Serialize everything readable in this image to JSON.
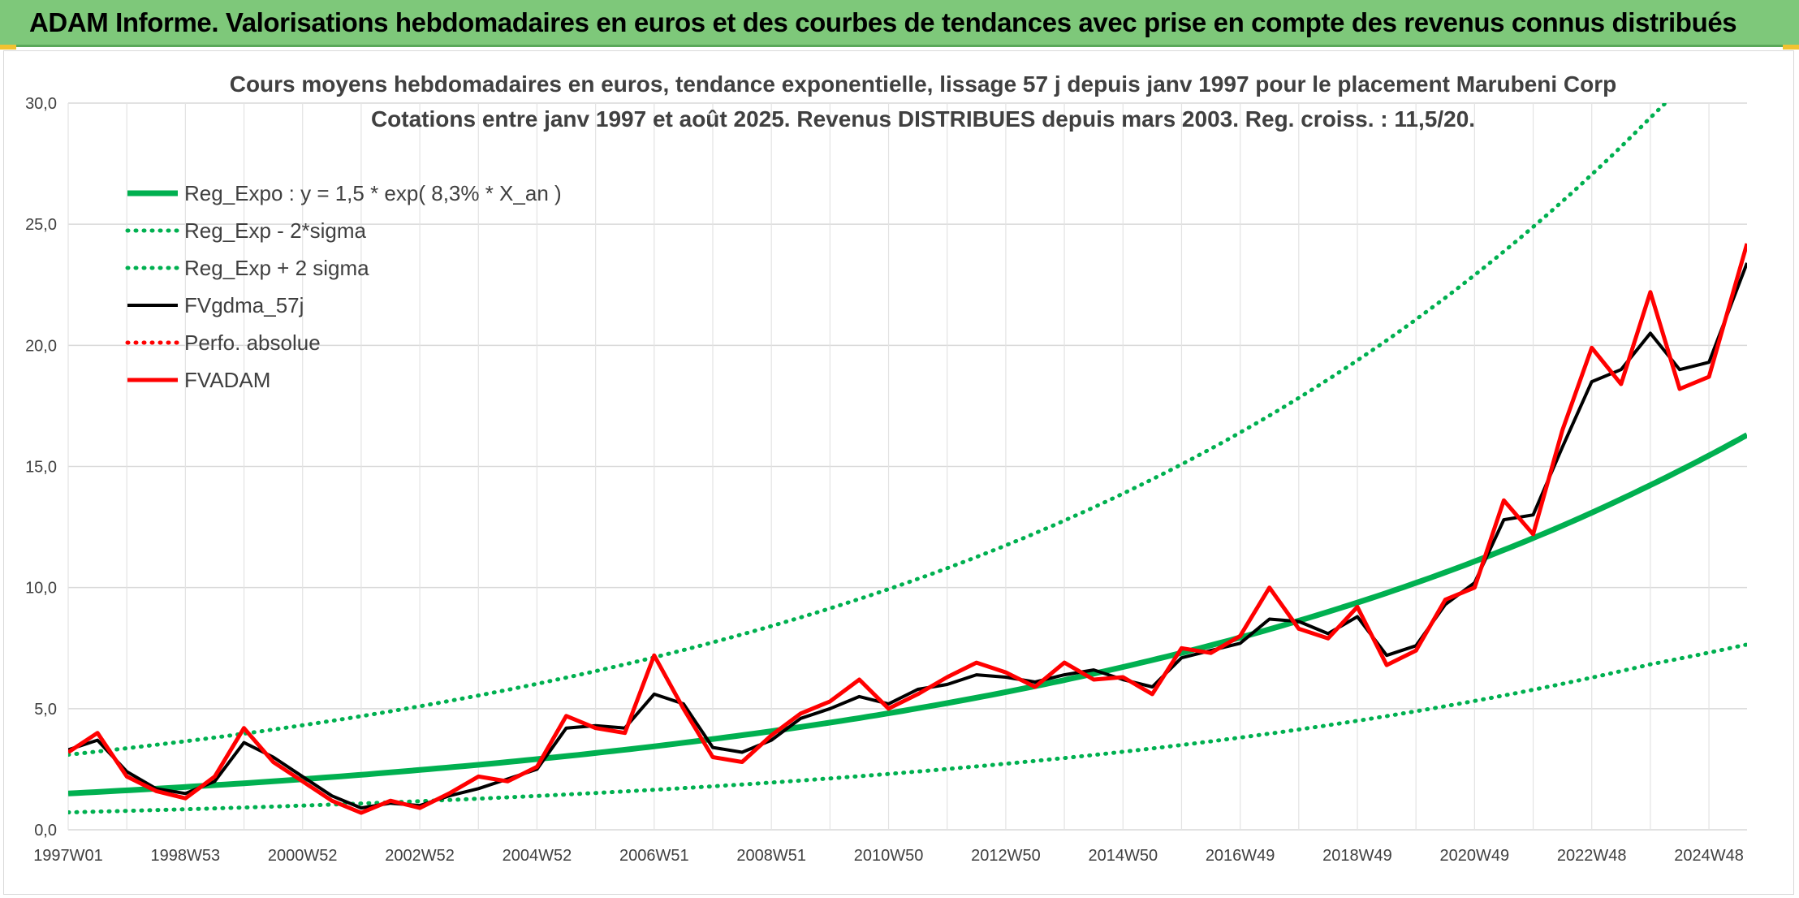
{
  "banner": {
    "title": "ADAM Informe. Valorisations hebdomadaires en euros et des courbes de tendances avec prise en compte des revenus connus distribués",
    "bg_color": "#7ec87a"
  },
  "chart_data": {
    "type": "line",
    "title": "Cours moyens hebdomadaires en euros, tendance exponentielle, lissage 57 j depuis janv 1997 pour le placement Marubeni Corp",
    "subtitle": "Cotations entre janv 1997 et août 2025. Revenus DISTRIBUES depuis mars 2003. Reg. croiss. : 11,5/20.",
    "xlabel": "",
    "ylabel": "",
    "ylim": [
      0,
      30
    ],
    "yticks": [
      "0,0",
      "5,0",
      "10,0",
      "15,0",
      "20,0",
      "25,0",
      "30,0"
    ],
    "xlim": [
      1997.0,
      2025.65
    ],
    "xticks": [
      {
        "label": "1997W01",
        "x": 1997.0
      },
      {
        "label": "1998W53",
        "x": 1999.0
      },
      {
        "label": "2000W52",
        "x": 2001.0
      },
      {
        "label": "2002W52",
        "x": 2003.0
      },
      {
        "label": "2004W52",
        "x": 2005.0
      },
      {
        "label": "2006W51",
        "x": 2007.0
      },
      {
        "label": "2008W51",
        "x": 2009.0
      },
      {
        "label": "2010W50",
        "x": 2011.0
      },
      {
        "label": "2012W50",
        "x": 2013.0
      },
      {
        "label": "2014W50",
        "x": 2015.0
      },
      {
        "label": "2016W49",
        "x": 2017.0
      },
      {
        "label": "2018W49",
        "x": 2019.0
      },
      {
        "label": "2020W49",
        "x": 2021.0
      },
      {
        "label": "2022W48",
        "x": 2023.0
      },
      {
        "label": "2024W48",
        "x": 2025.0
      }
    ],
    "grid": true,
    "legend_position": "top-left",
    "series": [
      {
        "name": "Reg_Expo : y = 1,5 * exp( 8,3% *  X_an )",
        "style": "solid-thick",
        "color": "#00b050",
        "x": [
          1997,
          2000,
          2003,
          2006,
          2009,
          2012,
          2015,
          2018,
          2021,
          2024,
          2025.65
        ],
        "y": [
          1.5,
          1.92,
          2.47,
          3.17,
          4.07,
          5.23,
          6.72,
          8.63,
          11.08,
          14.23,
          16.3
        ]
      },
      {
        "name": "Reg_Exp - 2*sigma",
        "style": "dotted",
        "color": "#00b050",
        "x": [
          1997,
          2000,
          2003,
          2006,
          2009,
          2012,
          2015,
          2018,
          2021,
          2024,
          2025.65
        ],
        "y": [
          0.72,
          0.92,
          1.18,
          1.52,
          1.95,
          2.51,
          3.22,
          4.14,
          5.32,
          6.83,
          7.65
        ]
      },
      {
        "name": "Reg_Exp + 2 sigma",
        "style": "dotted",
        "color": "#00b050",
        "x": [
          1997,
          2000,
          2003,
          2006,
          2009,
          2012,
          2015,
          2018,
          2021,
          2024,
          2025.65
        ],
        "y": [
          3.1,
          3.97,
          5.1,
          6.55,
          8.41,
          10.8,
          13.88,
          17.83,
          22.9,
          29.4,
          33.5
        ]
      },
      {
        "name": "FVgdma_57j",
        "style": "solid",
        "color": "#000000",
        "x": [
          1997.0,
          1997.5,
          1998.0,
          1998.5,
          1999.0,
          1999.5,
          2000.0,
          2000.5,
          2001.0,
          2001.5,
          2002.0,
          2002.5,
          2003.0,
          2003.5,
          2004.0,
          2004.5,
          2005.0,
          2005.5,
          2006.0,
          2006.5,
          2007.0,
          2007.5,
          2008.0,
          2008.5,
          2009.0,
          2009.5,
          2010.0,
          2010.5,
          2011.0,
          2011.5,
          2012.0,
          2012.5,
          2013.0,
          2013.5,
          2014.0,
          2014.5,
          2015.0,
          2015.5,
          2016.0,
          2016.5,
          2017.0,
          2017.5,
          2018.0,
          2018.5,
          2019.0,
          2019.5,
          2020.0,
          2020.5,
          2021.0,
          2021.5,
          2022.0,
          2022.5,
          2023.0,
          2023.5,
          2024.0,
          2024.5,
          2025.0,
          2025.65
        ],
        "y": [
          3.3,
          3.7,
          2.4,
          1.7,
          1.5,
          2.0,
          3.6,
          3.0,
          2.2,
          1.4,
          0.9,
          1.1,
          1.0,
          1.4,
          1.7,
          2.1,
          2.5,
          4.2,
          4.3,
          4.2,
          5.6,
          5.2,
          3.4,
          3.2,
          3.7,
          4.6,
          5.0,
          5.5,
          5.2,
          5.8,
          6.0,
          6.4,
          6.3,
          6.1,
          6.4,
          6.6,
          6.2,
          5.9,
          7.1,
          7.4,
          7.7,
          8.7,
          8.6,
          8.1,
          8.8,
          7.2,
          7.6,
          9.3,
          10.2,
          12.8,
          13.0,
          15.8,
          18.5,
          19.0,
          20.5,
          19.0,
          19.3,
          23.4
        ]
      },
      {
        "name": "Perfo. absolue",
        "style": "dotted",
        "color": "#ff0000",
        "x": [],
        "y": []
      },
      {
        "name": "FVADAM",
        "style": "solid-thick",
        "color": "#ff0000",
        "x": [
          1997.0,
          1997.5,
          1998.0,
          1998.5,
          1999.0,
          1999.5,
          2000.0,
          2000.5,
          2001.0,
          2001.5,
          2002.0,
          2002.5,
          2003.0,
          2003.5,
          2004.0,
          2004.5,
          2005.0,
          2005.5,
          2006.0,
          2006.5,
          2007.0,
          2007.5,
          2008.0,
          2008.5,
          2009.0,
          2009.5,
          2010.0,
          2010.5,
          2011.0,
          2011.5,
          2012.0,
          2012.5,
          2013.0,
          2013.5,
          2014.0,
          2014.5,
          2015.0,
          2015.5,
          2016.0,
          2016.5,
          2017.0,
          2017.5,
          2018.0,
          2018.5,
          2019.0,
          2019.5,
          2020.0,
          2020.5,
          2021.0,
          2021.5,
          2022.0,
          2022.5,
          2023.0,
          2023.5,
          2024.0,
          2024.5,
          2025.0,
          2025.65
        ],
        "y": [
          3.2,
          4.0,
          2.2,
          1.6,
          1.3,
          2.2,
          4.2,
          2.8,
          2.0,
          1.2,
          0.7,
          1.2,
          0.9,
          1.5,
          2.2,
          2.0,
          2.6,
          4.7,
          4.2,
          4.0,
          7.2,
          5.0,
          3.0,
          2.8,
          3.9,
          4.8,
          5.3,
          6.2,
          5.0,
          5.6,
          6.3,
          6.9,
          6.5,
          5.9,
          6.9,
          6.2,
          6.3,
          5.6,
          7.5,
          7.3,
          8.0,
          10.0,
          8.3,
          7.9,
          9.2,
          6.8,
          7.4,
          9.5,
          10.0,
          13.6,
          12.2,
          16.5,
          19.9,
          18.4,
          22.2,
          18.2,
          18.7,
          24.2
        ]
      }
    ]
  }
}
